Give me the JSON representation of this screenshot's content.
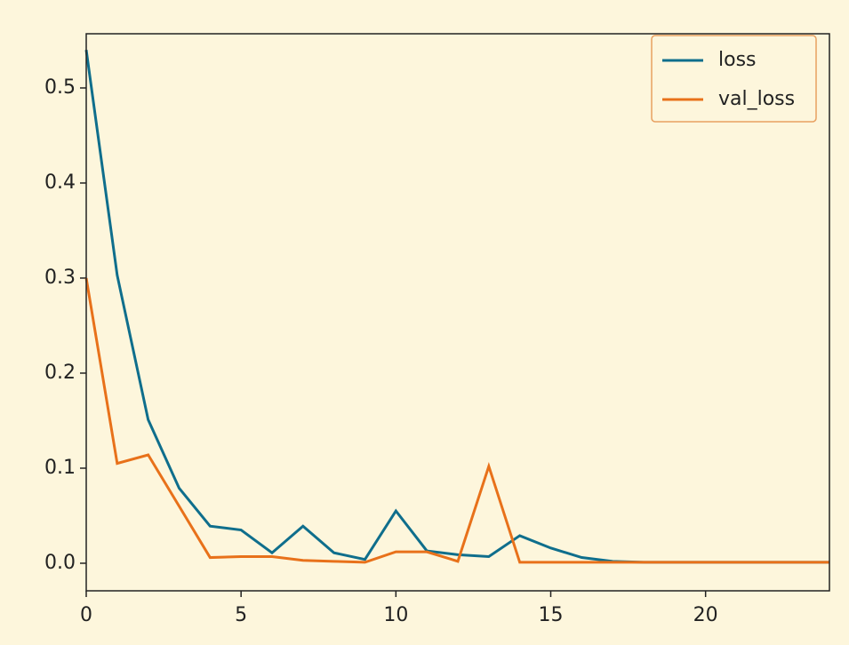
{
  "chart_data": {
    "type": "line",
    "x": [
      0,
      1,
      2,
      3,
      4,
      5,
      6,
      7,
      8,
      9,
      10,
      11,
      12,
      13,
      14,
      15,
      16,
      17,
      18,
      19,
      20,
      21,
      22,
      23,
      24
    ],
    "series": [
      {
        "name": "loss",
        "color": "#0f6e8c",
        "values": [
          0.54,
          0.303,
          0.151,
          0.079,
          0.039,
          0.035,
          0.011,
          0.039,
          0.011,
          0.004,
          0.055,
          0.013,
          0.009,
          0.007,
          0.029,
          0.016,
          0.006,
          0.002,
          0.001,
          0.001,
          0.001,
          0.001,
          0.001,
          0.001,
          0.001
        ]
      },
      {
        "name": "val_loss",
        "color": "#e8711a",
        "values": [
          0.3,
          0.105,
          0.114,
          0.06,
          0.006,
          0.007,
          0.007,
          0.003,
          0.002,
          0.001,
          0.012,
          0.012,
          0.002,
          0.102,
          0.001,
          0.001,
          0.001,
          0.001,
          0.001,
          0.001,
          0.001,
          0.001,
          0.001,
          0.001,
          0.001
        ]
      }
    ],
    "xlim": [
      0,
      24
    ],
    "xticks": [
      0,
      5,
      10,
      15,
      20
    ],
    "ylim": [
      -0.029,
      0.557
    ],
    "yticks": [
      {
        "value": 0,
        "label": "0.0"
      },
      0.1,
      0.2,
      0.3,
      0.4,
      0.5
    ],
    "legend": "upper right"
  }
}
